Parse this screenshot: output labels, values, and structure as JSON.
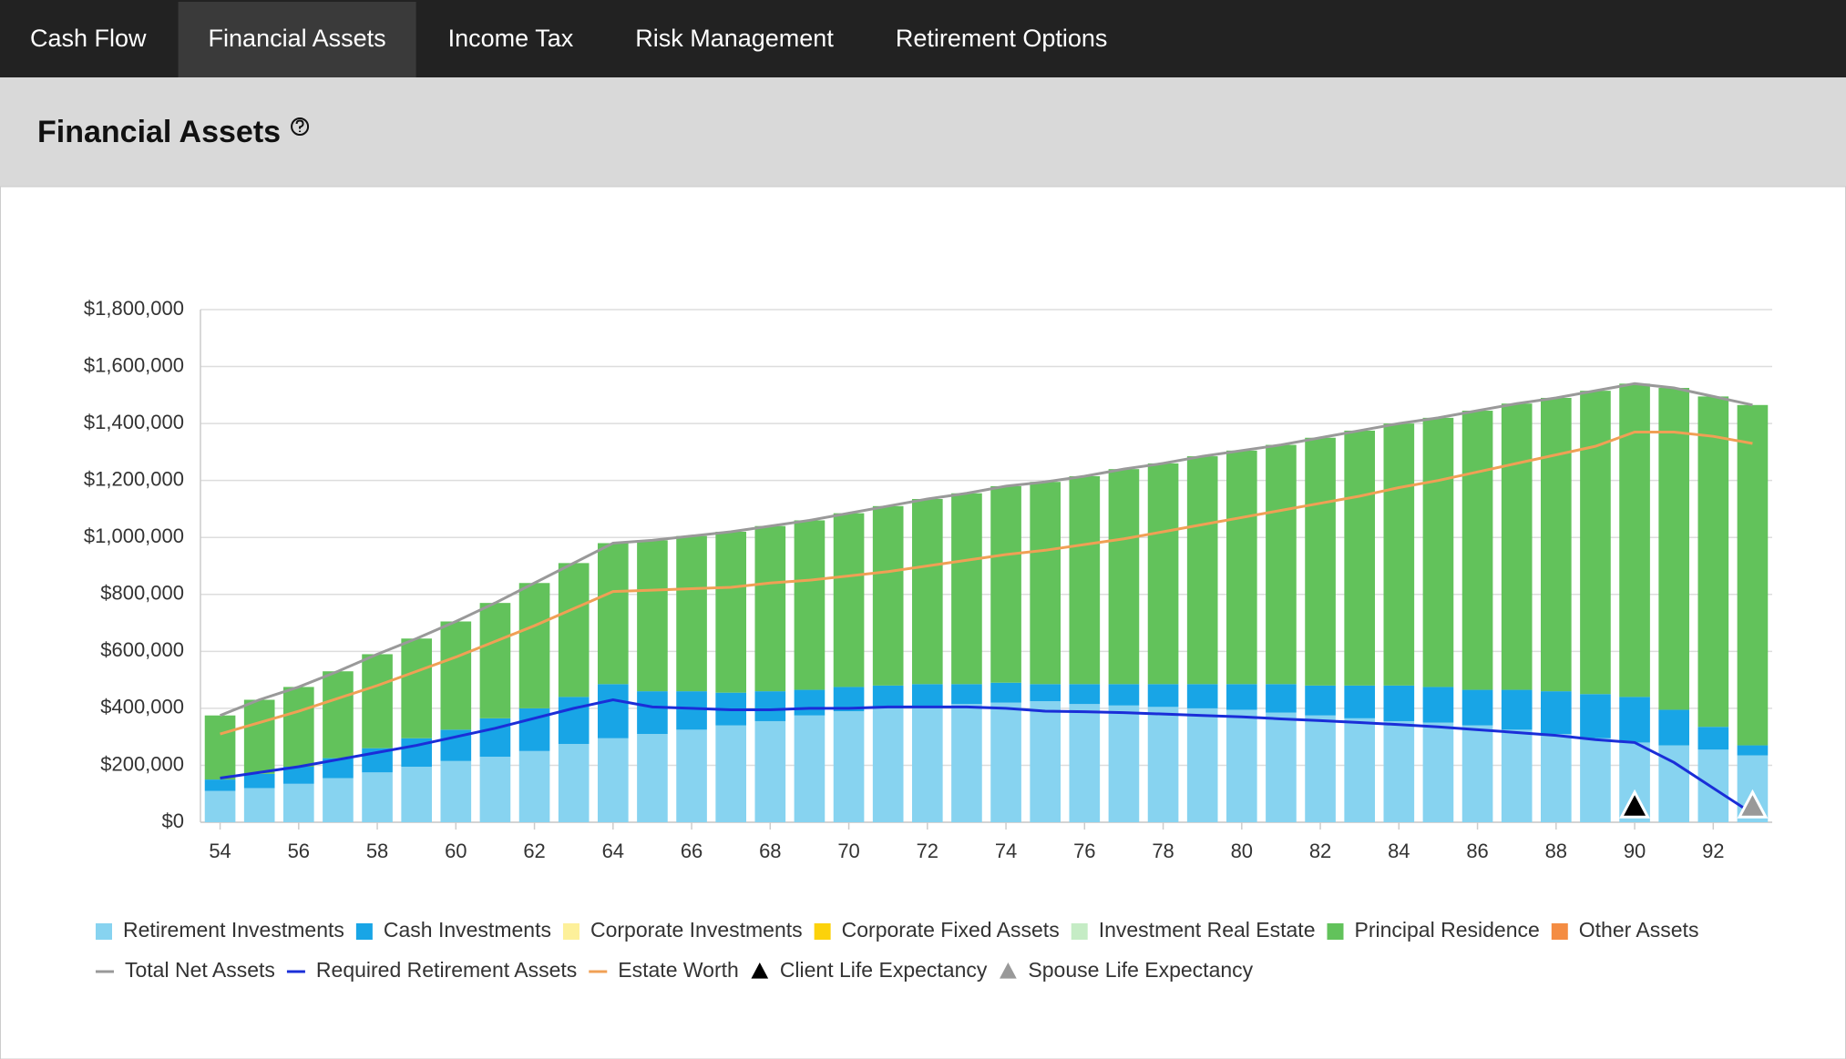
{
  "nav": {
    "tabs": [
      {
        "label": "Cash Flow",
        "active": false
      },
      {
        "label": "Financial Assets",
        "active": true
      },
      {
        "label": "Income Tax",
        "active": false
      },
      {
        "label": "Risk Management",
        "active": false
      },
      {
        "label": "Retirement Options",
        "active": false
      }
    ]
  },
  "header": {
    "title": "Financial Assets"
  },
  "chart_data": {
    "type": "bar",
    "stacked": true,
    "grid": true,
    "x": [
      54,
      55,
      56,
      57,
      58,
      59,
      60,
      61,
      62,
      63,
      64,
      65,
      66,
      67,
      68,
      69,
      70,
      71,
      72,
      73,
      74,
      75,
      76,
      77,
      78,
      79,
      80,
      81,
      82,
      83,
      84,
      85,
      86,
      87,
      88,
      89,
      90,
      91,
      92,
      93
    ],
    "xlim": [
      53.5,
      93.5
    ],
    "xticks": [
      54,
      56,
      58,
      60,
      62,
      64,
      66,
      68,
      70,
      72,
      74,
      76,
      78,
      80,
      82,
      84,
      86,
      88,
      90,
      92
    ],
    "ylim": [
      0,
      1800000
    ],
    "yticks": [
      {
        "value": 0,
        "label": "$0"
      },
      {
        "value": 200000,
        "label": "$200,000"
      },
      {
        "value": 400000,
        "label": "$400,000"
      },
      {
        "value": 600000,
        "label": "$600,000"
      },
      {
        "value": 800000,
        "label": "$800,000"
      },
      {
        "value": 1000000,
        "label": "$1,000,000"
      },
      {
        "value": 1200000,
        "label": "$1,200,000"
      },
      {
        "value": 1400000,
        "label": "$1,400,000"
      },
      {
        "value": 1600000,
        "label": "$1,600,000"
      },
      {
        "value": 1800000,
        "label": "$1,800,000"
      }
    ],
    "series": [
      {
        "name": "Retirement Investments",
        "type": "bar",
        "color": "#87d3f0",
        "values": [
          110000,
          120000,
          135000,
          155000,
          175000,
          195000,
          215000,
          230000,
          250000,
          275000,
          295000,
          310000,
          325000,
          340000,
          355000,
          375000,
          390000,
          400000,
          405000,
          415000,
          420000,
          425000,
          415000,
          410000,
          405000,
          400000,
          395000,
          385000,
          375000,
          365000,
          355000,
          350000,
          340000,
          325000,
          310000,
          295000,
          280000,
          270000,
          255000,
          235000
        ]
      },
      {
        "name": "Cash Investments",
        "type": "bar",
        "color": "#18a5e6",
        "values": [
          40000,
          50000,
          60000,
          70000,
          85000,
          100000,
          110000,
          135000,
          150000,
          165000,
          190000,
          150000,
          135000,
          115000,
          105000,
          90000,
          85000,
          80000,
          80000,
          70000,
          70000,
          60000,
          70000,
          75000,
          80000,
          85000,
          90000,
          100000,
          105000,
          115000,
          125000,
          125000,
          125000,
          140000,
          150000,
          155000,
          160000,
          125000,
          80000,
          35000
        ]
      },
      {
        "name": "Corporate Investments",
        "type": "bar",
        "color": "#fdf09a",
        "values": [
          0,
          0,
          0,
          0,
          0,
          0,
          0,
          0,
          0,
          0,
          0,
          0,
          0,
          0,
          0,
          0,
          0,
          0,
          0,
          0,
          0,
          0,
          0,
          0,
          0,
          0,
          0,
          0,
          0,
          0,
          0,
          0,
          0,
          0,
          0,
          0,
          0,
          0,
          0,
          0
        ]
      },
      {
        "name": "Corporate Fixed Assets",
        "type": "bar",
        "color": "#fcd20b",
        "values": [
          0,
          0,
          0,
          0,
          0,
          0,
          0,
          0,
          0,
          0,
          0,
          0,
          0,
          0,
          0,
          0,
          0,
          0,
          0,
          0,
          0,
          0,
          0,
          0,
          0,
          0,
          0,
          0,
          0,
          0,
          0,
          0,
          0,
          0,
          0,
          0,
          0,
          0,
          0,
          0
        ]
      },
      {
        "name": "Investment Real Estate",
        "type": "bar",
        "color": "#c5ecc5",
        "values": [
          0,
          0,
          0,
          0,
          0,
          0,
          0,
          0,
          0,
          0,
          0,
          0,
          0,
          0,
          0,
          0,
          0,
          0,
          0,
          0,
          0,
          0,
          0,
          0,
          0,
          0,
          0,
          0,
          0,
          0,
          0,
          0,
          0,
          0,
          0,
          0,
          0,
          0,
          0,
          0
        ]
      },
      {
        "name": "Principal Residence",
        "type": "bar",
        "color": "#62c25b",
        "values": [
          225000,
          260000,
          280000,
          305000,
          330000,
          350000,
          380000,
          405000,
          440000,
          470000,
          495000,
          530000,
          545000,
          565000,
          580000,
          595000,
          610000,
          630000,
          650000,
          670000,
          690000,
          710000,
          730000,
          755000,
          775000,
          800000,
          820000,
          840000,
          870000,
          895000,
          920000,
          945000,
          980000,
          1005000,
          1030000,
          1065000,
          1100000,
          1130000,
          1160000,
          1195000
        ]
      },
      {
        "name": "Other Assets",
        "type": "bar",
        "color": "#f48c42",
        "values": [
          0,
          0,
          0,
          0,
          0,
          0,
          0,
          0,
          0,
          0,
          0,
          0,
          0,
          0,
          0,
          0,
          0,
          0,
          0,
          0,
          0,
          0,
          0,
          0,
          0,
          0,
          0,
          0,
          0,
          0,
          0,
          0,
          0,
          0,
          0,
          0,
          0,
          0,
          0,
          0
        ]
      },
      {
        "name": "Total Net Assets",
        "type": "line",
        "color": "#999999",
        "values": [
          375000,
          430000,
          475000,
          530000,
          590000,
          645000,
          705000,
          770000,
          840000,
          910000,
          980000,
          990000,
          1005000,
          1020000,
          1040000,
          1060000,
          1085000,
          1110000,
          1135000,
          1155000,
          1180000,
          1195000,
          1215000,
          1240000,
          1260000,
          1285000,
          1305000,
          1325000,
          1350000,
          1375000,
          1400000,
          1420000,
          1445000,
          1470000,
          1490000,
          1515000,
          1540000,
          1525000,
          1495000,
          1465000
        ]
      },
      {
        "name": "Required Retirement Assets",
        "type": "line",
        "color": "#1a2ed8",
        "values": [
          155000,
          175000,
          195000,
          220000,
          245000,
          270000,
          300000,
          330000,
          365000,
          400000,
          430000,
          405000,
          400000,
          395000,
          395000,
          400000,
          400000,
          405000,
          405000,
          405000,
          400000,
          390000,
          388000,
          385000,
          380000,
          375000,
          370000,
          363000,
          357000,
          350000,
          343000,
          335000,
          325000,
          315000,
          305000,
          290000,
          280000,
          210000,
          120000,
          30000
        ]
      },
      {
        "name": "Estate Worth",
        "type": "line",
        "color": "#f0a055",
        "values": [
          310000,
          350000,
          390000,
          435000,
          480000,
          530000,
          580000,
          635000,
          690000,
          750000,
          810000,
          815000,
          820000,
          825000,
          840000,
          850000,
          865000,
          880000,
          900000,
          920000,
          940000,
          955000,
          975000,
          995000,
          1020000,
          1045000,
          1070000,
          1095000,
          1120000,
          1145000,
          1175000,
          1200000,
          1230000,
          1260000,
          1290000,
          1320000,
          1370000,
          1370000,
          1355000,
          1330000
        ]
      }
    ],
    "markers": [
      {
        "name": "Client Life Expectancy",
        "color": "#000000",
        "x": 90
      },
      {
        "name": "Spouse Life Expectancy",
        "color": "#999999",
        "x": 93
      }
    ]
  }
}
